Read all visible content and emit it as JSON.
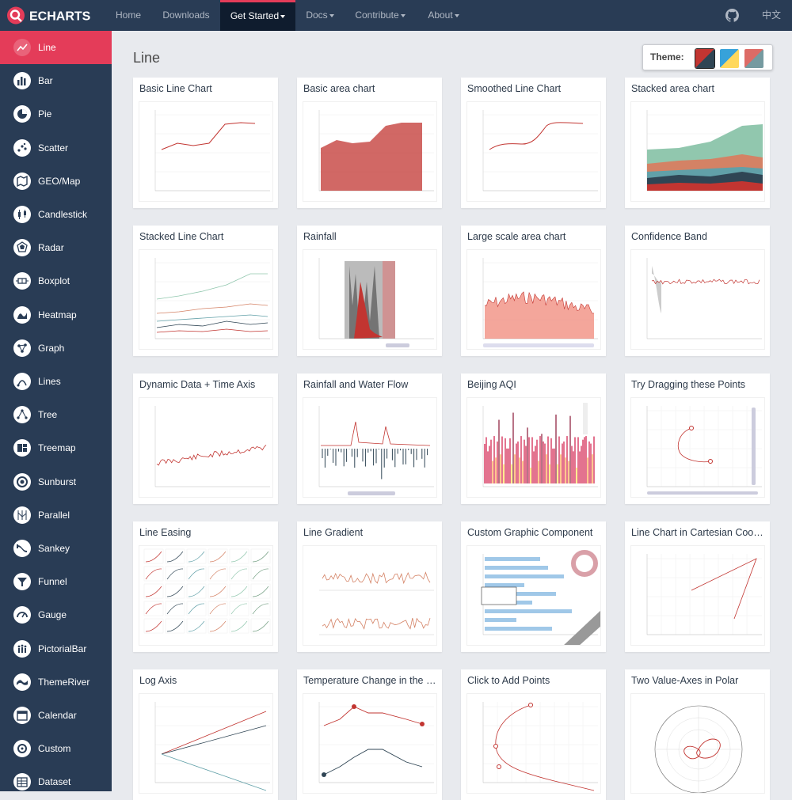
{
  "nav": {
    "brand": "ECHARTS",
    "items": [
      {
        "label": "Home",
        "dropdown": false,
        "active": false
      },
      {
        "label": "Downloads",
        "dropdown": false,
        "active": false
      },
      {
        "label": "Get Started",
        "dropdown": true,
        "active": true
      },
      {
        "label": "Docs",
        "dropdown": true,
        "active": false
      },
      {
        "label": "Contribute",
        "dropdown": true,
        "active": false
      },
      {
        "label": "About",
        "dropdown": true,
        "active": false
      }
    ],
    "github_icon": "github-icon",
    "language": "中文"
  },
  "sidebar": {
    "items": [
      {
        "label": "Line",
        "icon": "line-icon",
        "active": true
      },
      {
        "label": "Bar",
        "icon": "bar-icon"
      },
      {
        "label": "Pie",
        "icon": "pie-icon"
      },
      {
        "label": "Scatter",
        "icon": "scatter-icon"
      },
      {
        "label": "GEO/Map",
        "icon": "map-icon"
      },
      {
        "label": "Candlestick",
        "icon": "candlestick-icon"
      },
      {
        "label": "Radar",
        "icon": "radar-icon"
      },
      {
        "label": "Boxplot",
        "icon": "boxplot-icon"
      },
      {
        "label": "Heatmap",
        "icon": "heatmap-icon"
      },
      {
        "label": "Graph",
        "icon": "graph-icon"
      },
      {
        "label": "Lines",
        "icon": "lines-icon"
      },
      {
        "label": "Tree",
        "icon": "tree-icon"
      },
      {
        "label": "Treemap",
        "icon": "treemap-icon"
      },
      {
        "label": "Sunburst",
        "icon": "sunburst-icon"
      },
      {
        "label": "Parallel",
        "icon": "parallel-icon"
      },
      {
        "label": "Sankey",
        "icon": "sankey-icon"
      },
      {
        "label": "Funnel",
        "icon": "funnel-icon"
      },
      {
        "label": "Gauge",
        "icon": "gauge-icon"
      },
      {
        "label": "PictorialBar",
        "icon": "pictorialbar-icon"
      },
      {
        "label": "ThemeRiver",
        "icon": "themeriver-icon"
      },
      {
        "label": "Calendar",
        "icon": "calendar-icon"
      },
      {
        "label": "Custom",
        "icon": "custom-icon"
      },
      {
        "label": "Dataset",
        "icon": "dataset-icon"
      }
    ]
  },
  "main": {
    "title": "Line",
    "theme": {
      "label": "Theme:",
      "options": [
        {
          "name": "default",
          "colors": [
            "#c23531",
            "#2f4554"
          ],
          "selected": true
        },
        {
          "name": "light",
          "colors": [
            "#37a2da",
            "#ffd85c"
          ]
        },
        {
          "name": "dark",
          "colors": [
            "#dd6b66",
            "#759aa0"
          ]
        }
      ]
    },
    "cards": [
      {
        "title": "Basic Line Chart",
        "thumb": "basic-line"
      },
      {
        "title": "Basic area chart",
        "thumb": "basic-area"
      },
      {
        "title": "Smoothed Line Chart",
        "thumb": "smoothed-line"
      },
      {
        "title": "Stacked area chart",
        "thumb": "stacked-area"
      },
      {
        "title": "Stacked Line Chart",
        "thumb": "stacked-line"
      },
      {
        "title": "Rainfall",
        "thumb": "rainfall"
      },
      {
        "title": "Large scale area chart",
        "thumb": "large-area"
      },
      {
        "title": "Confidence Band",
        "thumb": "confidence-band"
      },
      {
        "title": "Dynamic Data + Time Axis",
        "thumb": "dynamic-data"
      },
      {
        "title": "Rainfall and Water Flow",
        "thumb": "rainfall-flow"
      },
      {
        "title": "Beijing AQI",
        "thumb": "beijing-aqi"
      },
      {
        "title": "Try Dragging these Points",
        "thumb": "drag-points"
      },
      {
        "title": "Line Easing",
        "thumb": "line-easing"
      },
      {
        "title": "Line Gradient",
        "thumb": "line-gradient"
      },
      {
        "title": "Custom Graphic Component",
        "thumb": "custom-graphic"
      },
      {
        "title": "Line Chart in Cartesian Coordinate System",
        "thumb": "cartesian"
      },
      {
        "title": "Log Axis",
        "thumb": "log-axis"
      },
      {
        "title": "Temperature Change in the Coming Week",
        "thumb": "temperature"
      },
      {
        "title": "Click to Add Points",
        "thumb": "click-add"
      },
      {
        "title": "Two Value-Axes in Polar",
        "thumb": "polar"
      }
    ]
  }
}
